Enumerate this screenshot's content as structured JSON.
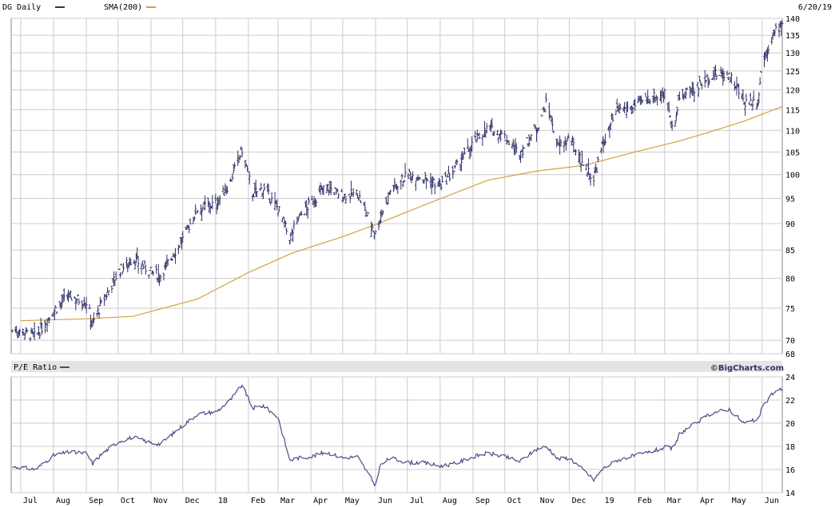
{
  "header": {
    "symbol_label": "DG Daily",
    "sma_label": "SMA(200)",
    "date": "6/20/19"
  },
  "pe_header": {
    "label": "P/E Ratio",
    "credit": "©BigCharts.com"
  },
  "colors": {
    "price": "#303068",
    "sma": "#D4A040",
    "pe": "#4A4A88",
    "grid": "#CCCCCC",
    "band": "#E4E4E4"
  },
  "chart_data": [
    {
      "type": "line",
      "title": "DG Daily",
      "series": [
        {
          "name": "DG Daily",
          "style": "ohlc",
          "x": [
            "2017-07-01",
            "2017-07-15",
            "2017-08-01",
            "2017-08-15",
            "2017-09-01",
            "2017-09-07",
            "2017-09-15",
            "2017-10-01",
            "2017-10-15",
            "2017-11-01",
            "2017-11-10",
            "2017-12-01",
            "2017-12-15",
            "2018-01-02",
            "2018-01-15",
            "2018-01-26",
            "2018-02-05",
            "2018-02-15",
            "2018-03-01",
            "2018-03-12",
            "2018-03-20",
            "2018-04-01",
            "2018-04-15",
            "2018-05-01",
            "2018-05-15",
            "2018-06-01",
            "2018-06-05",
            "2018-06-15",
            "2018-07-01",
            "2018-07-15",
            "2018-08-01",
            "2018-08-15",
            "2018-09-01",
            "2018-09-15",
            "2018-10-01",
            "2018-10-15",
            "2018-11-01",
            "2018-11-10",
            "2018-11-20",
            "2018-12-01",
            "2018-12-15",
            "2018-12-24",
            "2019-01-02",
            "2019-01-15",
            "2019-02-01",
            "2019-02-15",
            "2019-03-01",
            "2019-03-10",
            "2019-03-15",
            "2019-04-01",
            "2019-04-15",
            "2019-05-01",
            "2019-05-15",
            "2019-05-28",
            "2019-06-01",
            "2019-06-10",
            "2019-06-20"
          ],
          "close": [
            71.5,
            70.5,
            74.5,
            77.0,
            76.0,
            72.5,
            75.5,
            81.0,
            83.5,
            81.0,
            80.5,
            87.0,
            93.0,
            94.0,
            98.5,
            105.5,
            96.0,
            97.0,
            93.0,
            87.0,
            91.0,
            94.0,
            97.5,
            95.5,
            96.0,
            88.0,
            91.0,
            96.5,
            100.0,
            99.5,
            97.5,
            101.0,
            107.0,
            110.5,
            108.5,
            104.5,
            111.0,
            117.0,
            106.0,
            108.0,
            102.0,
            99.0,
            107.0,
            114.5,
            116.0,
            118.0,
            119.0,
            110.0,
            118.0,
            121.0,
            124.0,
            124.0,
            117.0,
            117.0,
            127.0,
            134.0,
            139.0
          ]
        },
        {
          "name": "SMA(200)",
          "style": "line",
          "x": [
            "2017-07-01",
            "2017-09-01",
            "2017-10-15",
            "2017-12-15",
            "2018-02-01",
            "2018-03-15",
            "2018-05-01",
            "2018-06-01",
            "2018-07-15",
            "2018-09-15",
            "2018-11-01",
            "2018-12-15",
            "2019-02-01",
            "2019-03-15",
            "2019-04-15",
            "2019-05-15",
            "2019-06-20"
          ],
          "y": [
            73.0,
            73.3,
            73.7,
            76.5,
            81.0,
            84.5,
            87.5,
            89.8,
            93.5,
            98.8,
            100.8,
            102.0,
            105.0,
            107.5,
            109.8,
            112.2,
            115.8
          ]
        }
      ],
      "ylim": [
        68,
        140
      ],
      "yticks": [
        68,
        70,
        75,
        80,
        85,
        90,
        95,
        100,
        105,
        110,
        115,
        120,
        125,
        130,
        135,
        140
      ],
      "scale": "log",
      "grid": true
    },
    {
      "type": "line",
      "title": "P/E Ratio",
      "series": [
        {
          "name": "P/E Ratio",
          "x": [
            "2017-07-01",
            "2017-07-15",
            "2017-08-01",
            "2017-08-15",
            "2017-09-01",
            "2017-09-07",
            "2017-09-15",
            "2017-10-01",
            "2017-10-15",
            "2017-11-01",
            "2017-11-10",
            "2017-12-01",
            "2017-12-15",
            "2018-01-02",
            "2018-01-15",
            "2018-01-26",
            "2018-02-05",
            "2018-02-15",
            "2018-03-01",
            "2018-03-12",
            "2018-03-20",
            "2018-04-01",
            "2018-04-15",
            "2018-05-01",
            "2018-05-15",
            "2018-06-01",
            "2018-06-05",
            "2018-06-15",
            "2018-07-01",
            "2018-07-15",
            "2018-08-01",
            "2018-08-15",
            "2018-09-01",
            "2018-09-15",
            "2018-10-01",
            "2018-10-15",
            "2018-11-01",
            "2018-11-10",
            "2018-11-20",
            "2018-12-01",
            "2018-12-15",
            "2018-12-24",
            "2019-01-02",
            "2019-01-15",
            "2019-02-01",
            "2019-02-15",
            "2019-03-01",
            "2019-03-10",
            "2019-03-15",
            "2019-04-01",
            "2019-04-15",
            "2019-05-01",
            "2019-05-15",
            "2019-05-28",
            "2019-06-01",
            "2019-06-10",
            "2019-06-20"
          ],
          "y": [
            16.2,
            16.0,
            17.2,
            17.5,
            17.4,
            16.5,
            17.3,
            18.4,
            18.8,
            18.3,
            18.2,
            19.8,
            20.8,
            21.0,
            22.0,
            23.3,
            21.3,
            21.5,
            20.5,
            16.8,
            17.0,
            17.1,
            17.5,
            17.0,
            17.1,
            14.6,
            16.3,
            17.0,
            16.6,
            16.6,
            16.3,
            16.5,
            17.1,
            17.4,
            17.1,
            16.7,
            17.8,
            18.0,
            16.9,
            17.0,
            15.9,
            15.1,
            16.1,
            16.8,
            17.2,
            17.5,
            17.9,
            17.8,
            19.1,
            20.1,
            20.9,
            21.2,
            20.0,
            20.3,
            21.3,
            22.5,
            23.0
          ]
        }
      ],
      "ylim": [
        14,
        24
      ],
      "yticks": [
        14,
        16,
        18,
        20,
        22,
        24
      ],
      "grid": true
    }
  ],
  "xaxis": {
    "labels": [
      "Jul",
      "Aug",
      "Sep",
      "Oct",
      "Nov",
      "Dec",
      "18",
      "Feb",
      "Mar",
      "Apr",
      "May",
      "Jun",
      "Jul",
      "Aug",
      "Sep",
      "Oct",
      "Nov",
      "Dec",
      "19",
      "Feb",
      "Mar",
      "Apr",
      "May",
      "Jun"
    ],
    "dates": [
      "2017-07-01",
      "2017-08-01",
      "2017-09-01",
      "2017-10-01",
      "2017-11-01",
      "2017-12-01",
      "2018-01-01",
      "2018-02-01",
      "2018-03-01",
      "2018-04-01",
      "2018-05-01",
      "2018-06-01",
      "2018-07-01",
      "2018-08-01",
      "2018-09-01",
      "2018-10-01",
      "2018-11-01",
      "2018-12-01",
      "2019-01-01",
      "2019-02-01",
      "2019-03-01",
      "2019-04-01",
      "2019-05-01",
      "2019-06-01"
    ]
  }
}
